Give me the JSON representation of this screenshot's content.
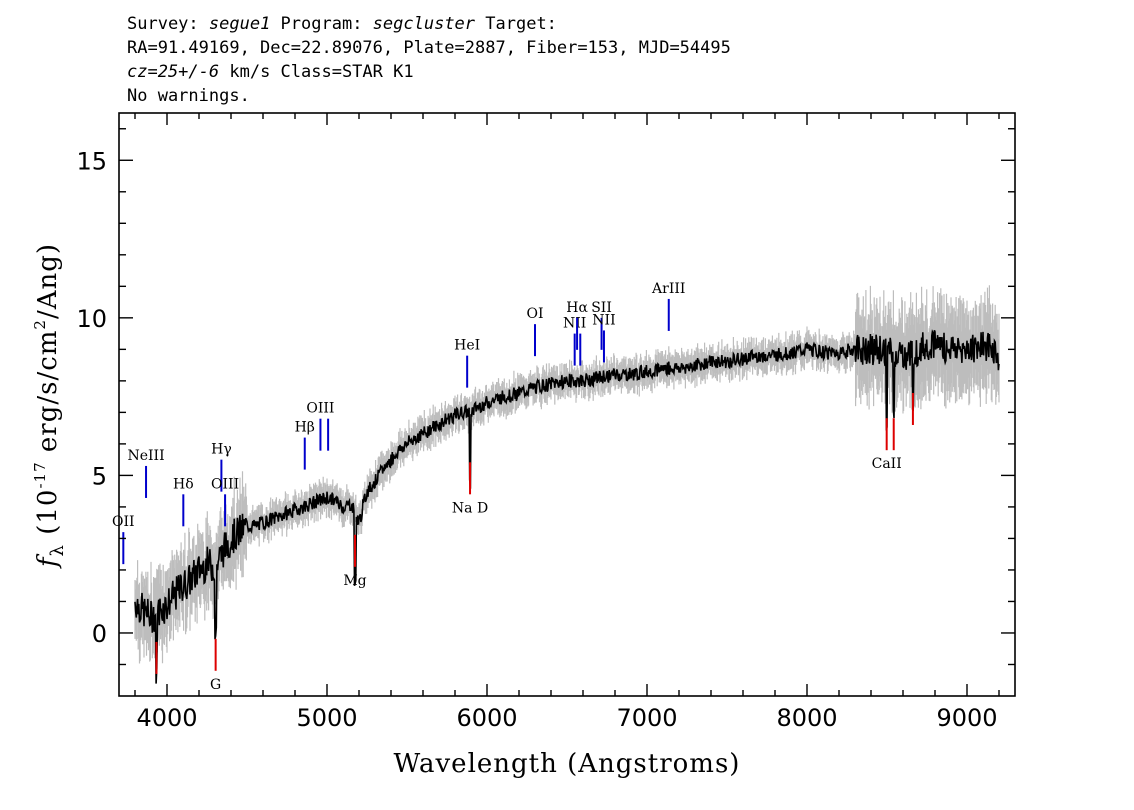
{
  "header": {
    "line1": {
      "survey_label": "Survey: ",
      "survey": "segue1",
      "program_label": " Program: ",
      "program": "segcluster",
      "target_label": " Target:"
    },
    "line2": "RA=91.49169, Dec=22.89076, Plate=2887, Fiber=153, MJD=54495",
    "line3": {
      "cz": "cz=25+/-6",
      "rest": " km/s Class=STAR K1"
    },
    "line4": "No warnings."
  },
  "chart_data": {
    "type": "line",
    "xlabel": "Wavelength (Angstroms)",
    "ylabel_parts": {
      "f": "f",
      "lambda": "λ",
      "open": " (10",
      "exp": "-17",
      "mid": " erg/s/cm",
      "sq": "2",
      "close": "/Ang)"
    },
    "xlim": [
      3700,
      9300
    ],
    "ylim": [
      -2,
      16.5
    ],
    "x_ticks": [
      4000,
      5000,
      6000,
      7000,
      8000,
      9000
    ],
    "y_ticks": [
      0,
      5,
      10,
      15
    ],
    "series": [
      {
        "style": "spectrum (black) with error envelope (gray)",
        "x": [
          3800,
          3850,
          3900,
          3950,
          4000,
          4050,
          4100,
          4150,
          4200,
          4250,
          4300,
          4350,
          4400,
          4450,
          4500,
          4550,
          4600,
          4650,
          4700,
          4750,
          4800,
          4850,
          4900,
          4950,
          5000,
          5050,
          5100,
          5150,
          5200,
          5250,
          5300,
          5350,
          5400,
          5450,
          5500,
          5550,
          5600,
          5650,
          5700,
          5750,
          5800,
          5850,
          5900,
          5950,
          6000,
          6100,
          6200,
          6300,
          6400,
          6500,
          6600,
          6700,
          6800,
          6900,
          7000,
          7100,
          7200,
          7300,
          7400,
          7500,
          7600,
          7700,
          7800,
          7900,
          8000,
          8100,
          8200,
          8300,
          8400,
          8500,
          8600,
          8700,
          8800,
          8900,
          9000,
          9100,
          9200
        ],
        "y": [
          1.0,
          0.7,
          0.5,
          0.7,
          0.9,
          1.2,
          1.5,
          1.7,
          2.0,
          2.2,
          2.1,
          2.6,
          3.0,
          3.2,
          3.4,
          3.4,
          3.5,
          3.6,
          3.7,
          3.8,
          3.9,
          4.0,
          4.1,
          4.2,
          4.3,
          4.2,
          4.0,
          4.1,
          3.5,
          4.5,
          4.8,
          5.2,
          5.5,
          5.8,
          6.0,
          6.2,
          6.3,
          6.5,
          6.6,
          6.8,
          6.9,
          7.0,
          7.0,
          7.2,
          7.3,
          7.5,
          7.6,
          7.8,
          7.9,
          8.0,
          8.0,
          8.1,
          8.2,
          8.2,
          8.3,
          8.4,
          8.4,
          8.5,
          8.6,
          8.6,
          8.7,
          8.8,
          8.8,
          8.9,
          9.0,
          8.9,
          8.9,
          9.0,
          9.0,
          8.9,
          8.8,
          9.0,
          9.2,
          9.0,
          9.0,
          9.2,
          8.8
        ]
      }
    ],
    "emission_lines": [
      {
        "label": "OII",
        "x": 3727,
        "y": 3.2
      },
      {
        "label": "NeIII",
        "x": 3869,
        "y": 5.3
      },
      {
        "label": "Hδ",
        "x": 4102,
        "y": 4.4
      },
      {
        "label": "Hγ",
        "x": 4340,
        "y": 5.5
      },
      {
        "label": "OIII",
        "x": 4363,
        "y": 4.4
      },
      {
        "label": "Hβ",
        "x": 4861,
        "y": 6.2
      },
      {
        "label": "OIII",
        "x": 4959,
        "y": 6.8
      },
      {
        "label": "",
        "x": 5007,
        "y": 6.8
      },
      {
        "label": "HeI",
        "x": 5876,
        "y": 8.8
      },
      {
        "label": "OI",
        "x": 6300,
        "y": 9.8
      },
      {
        "label": "NII",
        "x": 6548,
        "y": 9.5
      },
      {
        "label": "Hα",
        "x": 6563,
        "y": 10.0
      },
      {
        "label": "",
        "x": 6583,
        "y": 9.5
      },
      {
        "label": "SII",
        "x": 6716,
        "y": 10.0
      },
      {
        "label": "NII",
        "x": 6731,
        "y": 9.6
      },
      {
        "label": "ArIII",
        "x": 7136,
        "y": 10.6
      }
    ],
    "absorption_lines": [
      {
        "label": "",
        "x": 3934,
        "y": -1.3
      },
      {
        "label": "G",
        "x": 4304,
        "y": -1.2
      },
      {
        "label": "Mg",
        "x": 5175,
        "y": 2.1
      },
      {
        "label": "Na D",
        "x": 5894,
        "y": 4.4
      },
      {
        "label": "CaII",
        "x": 8498,
        "y": 5.8
      },
      {
        "label": "",
        "x": 8542,
        "y": 5.8
      },
      {
        "label": "",
        "x": 8662,
        "y": 6.6
      }
    ],
    "colors": {
      "spectrum": "#000000",
      "error": "#bdbdbd",
      "emission": "#0000cc",
      "absorption": "#dd0000"
    }
  }
}
